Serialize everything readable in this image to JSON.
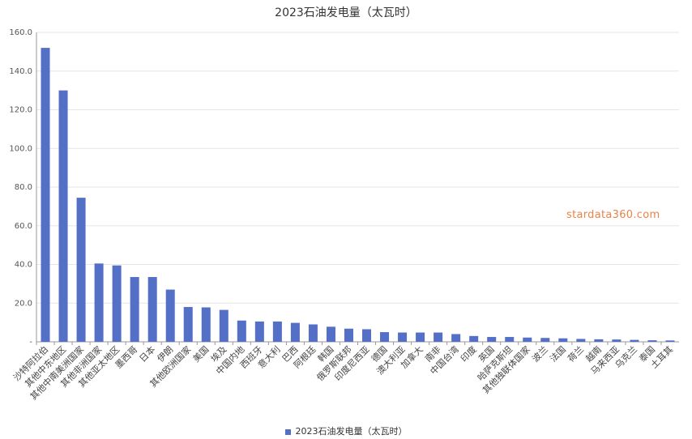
{
  "chart_data": {
    "type": "bar",
    "title": "2023石油发电量（太瓦时）",
    "xlabel": "",
    "ylabel": "",
    "ylim": [
      0,
      160
    ],
    "yticks": [
      "-",
      "20.0",
      "40.0",
      "60.0",
      "80.0",
      "100.0",
      "120.0",
      "140.0",
      "160.0"
    ],
    "grid": true,
    "legend_position": "bottom",
    "color": "#5470c6",
    "categories": [
      "沙特阿拉伯",
      "其他中东地区",
      "其他中南美洲国家",
      "其他非洲国家",
      "其他亚太地区",
      "墨西哥",
      "日本",
      "伊朗",
      "其他欧洲国家",
      "美国",
      "埃及",
      "中国内地",
      "西班牙",
      "意大利",
      "巴西",
      "阿根廷",
      "韩国",
      "俄罗斯联邦",
      "印度尼西亚",
      "德国",
      "澳大利亚",
      "加拿大",
      "南非",
      "中国台湾",
      "印度",
      "英国",
      "哈萨克斯坦",
      "其他独联体国家",
      "波兰",
      "法国",
      "荷兰",
      "越南",
      "马来西亚",
      "乌克兰",
      "泰国",
      "土耳其"
    ],
    "series": [
      {
        "name": "2023石油发电量（太瓦时）",
        "values": [
          152.0,
          130.0,
          74.5,
          40.5,
          39.5,
          33.5,
          33.5,
          27.0,
          18.0,
          17.8,
          16.5,
          11.0,
          10.5,
          10.5,
          9.8,
          9.0,
          7.8,
          6.8,
          6.5,
          5.0,
          4.8,
          4.8,
          4.8,
          4.0,
          3.0,
          2.5,
          2.5,
          2.2,
          2.0,
          1.8,
          1.5,
          1.3,
          1.2,
          1.0,
          0.8,
          0.7
        ]
      }
    ]
  },
  "watermark": "stardata360.com"
}
